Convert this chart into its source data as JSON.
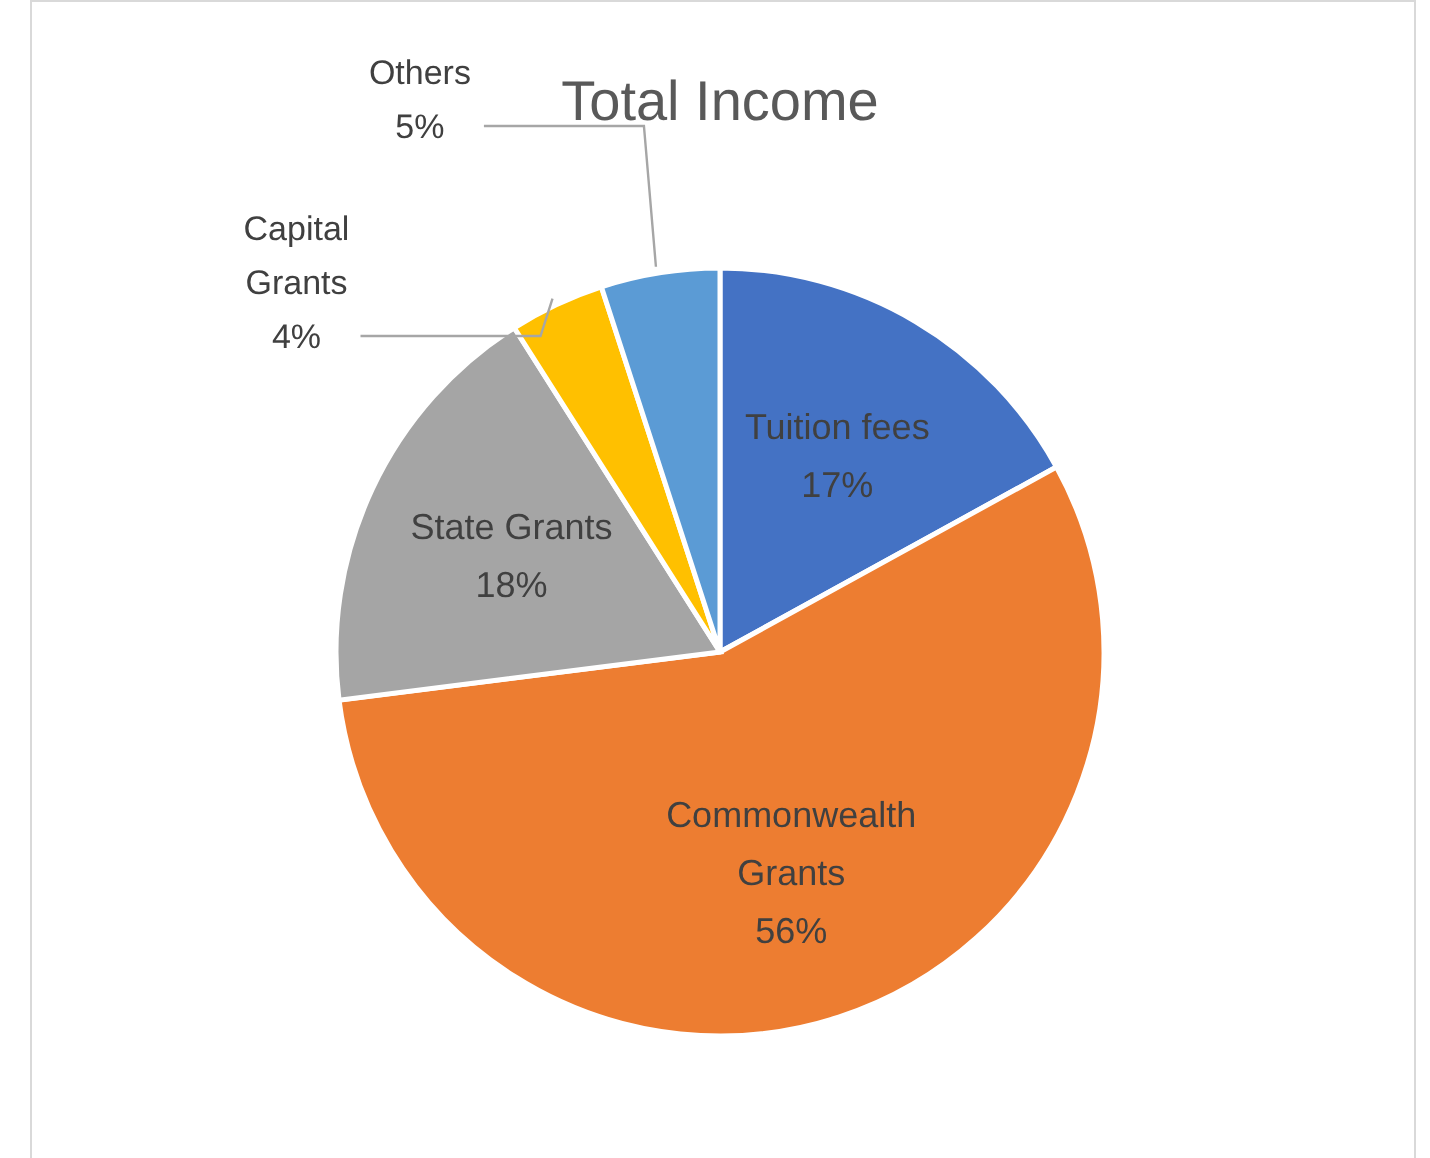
{
  "chart_data": {
    "type": "pie",
    "title": "Total Income",
    "categories": [
      "Tuition fees",
      "Commonwealth Grants",
      "State Grants",
      "Capital Grants",
      "Others"
    ],
    "values": [
      17,
      56,
      18,
      4,
      5
    ],
    "colors": [
      "#4472c4",
      "#ed7d31",
      "#a5a5a5",
      "#ffc000",
      "#5b9bd5"
    ],
    "value_labels": [
      "17%",
      "56%",
      "18%",
      "4%",
      "5%"
    ]
  }
}
